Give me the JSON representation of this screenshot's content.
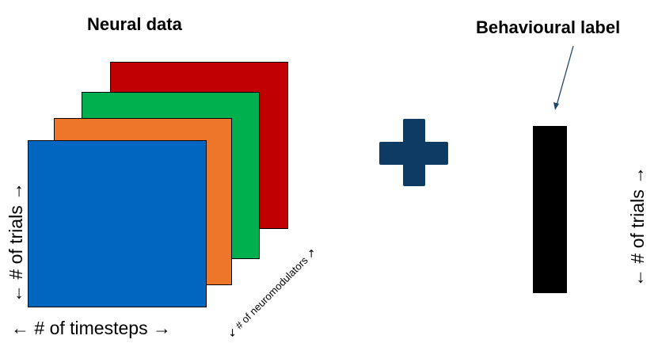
{
  "titles": {
    "neural_data": "Neural data",
    "behavioural_label": "Behavioural label"
  },
  "axes": {
    "timesteps": "←  # of timesteps  →",
    "trials_left": "←  # of trials  →",
    "neuromodulators": "↙ # of neuromodulators ↗",
    "trials_right": "←  # of trials  →"
  },
  "colors": {
    "blue": "#0066c0",
    "orange": "#ee7628",
    "green": "#00b04e",
    "red": "#c00000",
    "plus": "#0e3b63",
    "label_bar": "#000000",
    "pointer": "#1e4768"
  },
  "icons": {
    "plus": "plus-icon",
    "pointer": "arrow-pointer-icon"
  }
}
